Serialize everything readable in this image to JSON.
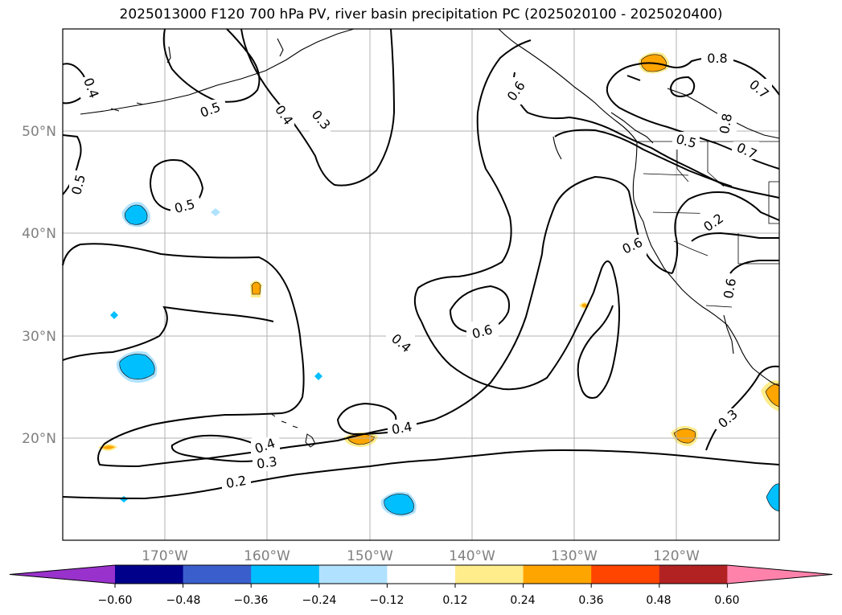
{
  "title": "2025013000 F120 700 hPa PV, river basin precipitation PC (2025020100 - 2025020400)",
  "map": {
    "lat_labels": [
      "50°N",
      "40°N",
      "30°N",
      "20°N"
    ],
    "lon_labels": [
      "170°W",
      "160°W",
      "150°W",
      "140°W",
      "130°W",
      "120°W"
    ],
    "contour_labels": [
      {
        "id": "c-04-nw",
        "text": "0.4"
      },
      {
        "id": "c-05-a",
        "text": "0.5"
      },
      {
        "id": "c-04-b",
        "text": "0.4"
      },
      {
        "id": "c-03-a",
        "text": "0.3"
      },
      {
        "id": "c-05-w",
        "text": "0.5"
      },
      {
        "id": "c-05-c",
        "text": "0.5"
      },
      {
        "id": "c-06-n",
        "text": "0.6"
      },
      {
        "id": "c-08-ne",
        "text": "0.8"
      },
      {
        "id": "c-07-ne",
        "text": "0.7"
      },
      {
        "id": "c-08-e",
        "text": "0.8"
      },
      {
        "id": "c-05-e",
        "text": "0.5"
      },
      {
        "id": "c-07-e",
        "text": "0.7"
      },
      {
        "id": "c-02-e",
        "text": "0.2"
      },
      {
        "id": "c-06-coast",
        "text": "0.6"
      },
      {
        "id": "c-06-se",
        "text": "0.6"
      },
      {
        "id": "c-06-c",
        "text": "0.6"
      },
      {
        "id": "c-04-c",
        "text": "0.4"
      },
      {
        "id": "c-04-s",
        "text": "0.4"
      },
      {
        "id": "c-04-sw",
        "text": "0.4"
      },
      {
        "id": "c-03-sw",
        "text": "0.3"
      },
      {
        "id": "c-02-sw",
        "text": "0.2"
      },
      {
        "id": "c-03-se",
        "text": "0.3"
      }
    ]
  },
  "colorbar": {
    "tick_labels": [
      "−0.60",
      "−0.48",
      "−0.36",
      "−0.24",
      "−0.12",
      "0.12",
      "0.24",
      "0.36",
      "0.48",
      "0.60"
    ],
    "colors": [
      "#9932CC",
      "#00008B",
      "#3A5FCD",
      "#00BFFF",
      "#B0E2FF",
      "#FFFFFF",
      "#FFEC8B",
      "#FFA500",
      "#FF4500",
      "#B22222",
      "#FF82AB"
    ]
  },
  "colors": {
    "positive_precip": "#FFA500",
    "positive_precip_light": "#FFEC8B",
    "negative_precip": "#00BFFF",
    "negative_precip_light": "#B0E2FF",
    "contour": "#000000",
    "grid": "#B0B0B0"
  }
}
